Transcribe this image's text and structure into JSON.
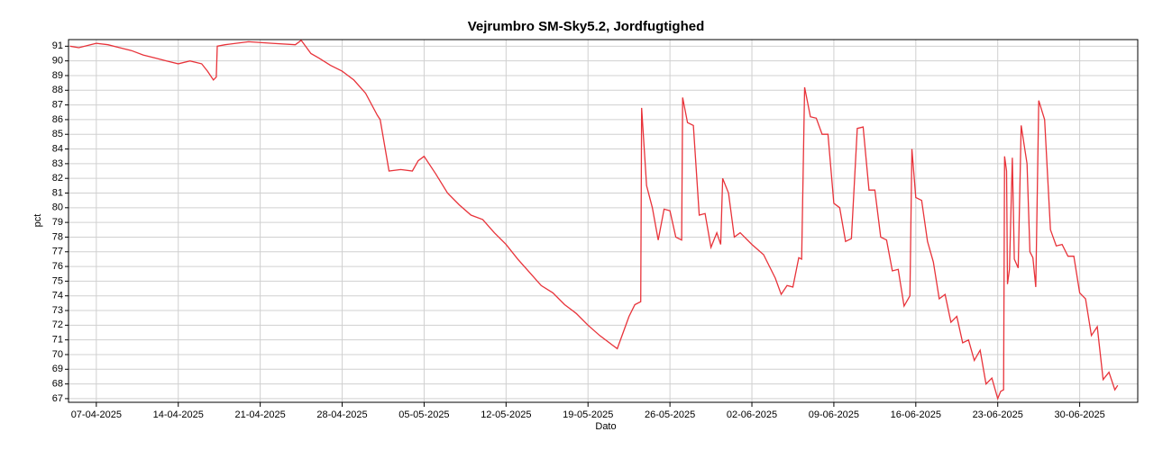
{
  "chart_data": {
    "type": "line",
    "title": "Vejrumbro SM-Sky5.2, Jordfugtighed",
    "x_label": "Dato",
    "y_label": "pct",
    "grid": true,
    "xlim": [
      "2025-04-04T15:00",
      "2025-07-04T23:00"
    ],
    "ylim": [
      66.75,
      91.45
    ],
    "yticks": [
      67,
      68,
      69,
      70,
      71,
      72,
      73,
      74,
      75,
      76,
      77,
      78,
      79,
      80,
      81,
      82,
      83,
      84,
      85,
      86,
      87,
      88,
      89,
      90,
      91
    ],
    "xticks": [
      {
        "value": "2025-04-07T00:00",
        "label": "07-04-2025"
      },
      {
        "value": "2025-04-14T00:00",
        "label": "14-04-2025"
      },
      {
        "value": "2025-04-21T00:00",
        "label": "21-04-2025"
      },
      {
        "value": "2025-04-28T00:00",
        "label": "28-04-2025"
      },
      {
        "value": "2025-05-05T00:00",
        "label": "05-05-2025"
      },
      {
        "value": "2025-05-12T00:00",
        "label": "12-05-2025"
      },
      {
        "value": "2025-05-19T00:00",
        "label": "19-05-2025"
      },
      {
        "value": "2025-05-26T00:00",
        "label": "26-05-2025"
      },
      {
        "value": "2025-06-02T00:00",
        "label": "02-06-2025"
      },
      {
        "value": "2025-06-09T00:00",
        "label": "09-06-2025"
      },
      {
        "value": "2025-06-16T00:00",
        "label": "16-06-2025"
      },
      {
        "value": "2025-06-23T00:00",
        "label": "23-06-2025"
      },
      {
        "value": "2025-06-30T00:00",
        "label": "30-06-2025"
      }
    ],
    "series": [
      {
        "name": "pct",
        "color": "#e8333a",
        "x": [
          "2025-04-04T18:00",
          "2025-04-05T12:00",
          "2025-04-06T12:00",
          "2025-04-07T00:00",
          "2025-04-08T00:00",
          "2025-04-09T00:00",
          "2025-04-10T00:00",
          "2025-04-11T00:00",
          "2025-04-12T00:00",
          "2025-04-13T00:00",
          "2025-04-14T00:00",
          "2025-04-15T00:00",
          "2025-04-16T00:00",
          "2025-04-16T12:00",
          "2025-04-17T00:00",
          "2025-04-17T06:00",
          "2025-04-17T08:00",
          "2025-04-18T00:00",
          "2025-04-20T00:00",
          "2025-04-22T00:00",
          "2025-04-24T00:00",
          "2025-04-24T12:00",
          "2025-04-25T08:00",
          "2025-04-26T00:00",
          "2025-04-27T00:00",
          "2025-04-28T00:00",
          "2025-04-29T00:00",
          "2025-04-30T00:00",
          "2025-05-01T00:00",
          "2025-05-01T06:00",
          "2025-05-02T00:00",
          "2025-05-03T00:00",
          "2025-05-04T00:00",
          "2025-05-04T12:00",
          "2025-05-05T00:00",
          "2025-05-06T00:00",
          "2025-05-07T00:00",
          "2025-05-08T00:00",
          "2025-05-09T00:00",
          "2025-05-10T00:00",
          "2025-05-11T00:00",
          "2025-05-12T00:00",
          "2025-05-13T00:00",
          "2025-05-14T00:00",
          "2025-05-15T00:00",
          "2025-05-16T00:00",
          "2025-05-17T00:00",
          "2025-05-18T00:00",
          "2025-05-19T00:00",
          "2025-05-20T00:00",
          "2025-05-21T00:00",
          "2025-05-21T12:00",
          "2025-05-22T00:00",
          "2025-05-22T12:00",
          "2025-05-23T00:00",
          "2025-05-23T12:00",
          "2025-05-23T14:00",
          "2025-05-24T00:00",
          "2025-05-24T12:00",
          "2025-05-25T00:00",
          "2025-05-25T12:00",
          "2025-05-26T00:00",
          "2025-05-26T12:00",
          "2025-05-27T00:00",
          "2025-05-27T02:00",
          "2025-05-27T12:00",
          "2025-05-28T00:00",
          "2025-05-28T12:00",
          "2025-05-29T00:00",
          "2025-05-29T12:00",
          "2025-05-30T00:00",
          "2025-05-30T08:00",
          "2025-05-30T12:00",
          "2025-05-31T00:00",
          "2025-05-31T12:00",
          "2025-06-01T00:00",
          "2025-06-02T00:00",
          "2025-06-03T00:00",
          "2025-06-04T00:00",
          "2025-06-04T12:00",
          "2025-06-05T00:00",
          "2025-06-05T12:00",
          "2025-06-06T00:00",
          "2025-06-06T06:00",
          "2025-06-06T12:00",
          "2025-06-07T00:00",
          "2025-06-07T12:00",
          "2025-06-08T00:00",
          "2025-06-08T12:00",
          "2025-06-09T00:00",
          "2025-06-09T12:00",
          "2025-06-10T00:00",
          "2025-06-10T12:00",
          "2025-06-11T00:00",
          "2025-06-11T12:00",
          "2025-06-12T00:00",
          "2025-06-12T12:00",
          "2025-06-13T00:00",
          "2025-06-13T12:00",
          "2025-06-14T00:00",
          "2025-06-14T12:00",
          "2025-06-15T00:00",
          "2025-06-15T12:00",
          "2025-06-15T16:00",
          "2025-06-16T00:00",
          "2025-06-16T12:00",
          "2025-06-17T00:00",
          "2025-06-17T12:00",
          "2025-06-18T00:00",
          "2025-06-18T12:00",
          "2025-06-19T00:00",
          "2025-06-19T12:00",
          "2025-06-20T00:00",
          "2025-06-20T12:00",
          "2025-06-21T00:00",
          "2025-06-21T12:00",
          "2025-06-22T00:00",
          "2025-06-22T12:00",
          "2025-06-23T00:00",
          "2025-06-23T06:00",
          "2025-06-23T12:00",
          "2025-06-23T14:00",
          "2025-06-23T18:00",
          "2025-06-23T20:00",
          "2025-06-24T00:00",
          "2025-06-24T06:00",
          "2025-06-24T10:00",
          "2025-06-24T18:00",
          "2025-06-25T00:00",
          "2025-06-25T12:00",
          "2025-06-25T18:00",
          "2025-06-26T00:00",
          "2025-06-26T06:00",
          "2025-06-26T12:00",
          "2025-06-27T00:00",
          "2025-06-27T12:00",
          "2025-06-28T00:00",
          "2025-06-28T12:00",
          "2025-06-29T00:00",
          "2025-06-29T12:00",
          "2025-06-30T00:00",
          "2025-06-30T12:00",
          "2025-07-01T00:00",
          "2025-07-01T12:00",
          "2025-07-02T00:00",
          "2025-07-02T12:00",
          "2025-07-03T00:00",
          "2025-07-03T06:00"
        ],
        "values": [
          91.0,
          90.9,
          91.1,
          91.2,
          91.1,
          90.9,
          90.7,
          90.4,
          90.2,
          90.0,
          89.8,
          90.0,
          89.8,
          89.3,
          88.7,
          88.9,
          91.0,
          91.1,
          91.3,
          91.2,
          91.1,
          91.4,
          90.5,
          90.2,
          89.7,
          89.3,
          88.7,
          87.8,
          86.3,
          86.0,
          82.5,
          82.6,
          82.5,
          83.2,
          83.5,
          82.3,
          81.0,
          80.2,
          79.5,
          79.2,
          78.3,
          77.5,
          76.5,
          75.6,
          74.7,
          74.2,
          73.4,
          72.8,
          72.0,
          71.3,
          70.7,
          70.4,
          71.5,
          72.6,
          73.4,
          73.6,
          86.8,
          81.5,
          80.0,
          77.8,
          79.9,
          79.8,
          78.0,
          77.8,
          87.5,
          85.8,
          85.6,
          79.5,
          79.6,
          77.3,
          78.3,
          77.5,
          82.0,
          81.0,
          78.0,
          78.3,
          77.5,
          76.8,
          75.2,
          74.1,
          74.7,
          74.6,
          76.6,
          76.5,
          88.2,
          86.2,
          86.1,
          85.0,
          85.0,
          80.3,
          80.0,
          77.7,
          77.9,
          85.4,
          85.5,
          81.2,
          81.2,
          78.0,
          77.8,
          75.7,
          75.8,
          73.3,
          74.0,
          84.0,
          80.7,
          80.5,
          77.7,
          76.3,
          73.8,
          74.1,
          72.2,
          72.6,
          70.8,
          71.0,
          69.6,
          70.3,
          68.0,
          68.4,
          67.0,
          67.5,
          67.6,
          83.5,
          82.5,
          74.8,
          75.8,
          83.4,
          76.5,
          75.9,
          85.6,
          83.0,
          77.0,
          76.6,
          74.6,
          87.3,
          86.0,
          78.5,
          77.4,
          77.5,
          76.7,
          76.7,
          74.2,
          73.8,
          71.3,
          71.9,
          68.3,
          68.8,
          67.6,
          67.9
        ]
      }
    ]
  }
}
